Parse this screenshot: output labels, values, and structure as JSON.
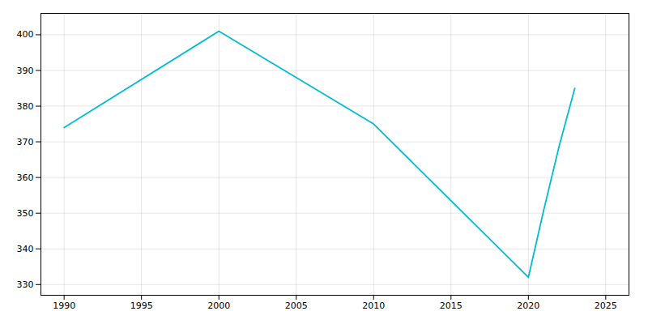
{
  "chart_data": {
    "type": "line",
    "x": [
      1990,
      2000,
      2010,
      2020,
      2021,
      2022,
      2023
    ],
    "values": [
      374,
      401,
      375,
      332,
      351,
      369,
      385
    ],
    "color": "#00BCD4",
    "xlim": [
      1988.5,
      2026.5
    ],
    "ylim": [
      327,
      406
    ],
    "xticks": [
      1990,
      1995,
      2000,
      2005,
      2010,
      2015,
      2020,
      2025
    ],
    "yticks": [
      330,
      340,
      350,
      360,
      370,
      380,
      390,
      400
    ],
    "grid": true
  }
}
